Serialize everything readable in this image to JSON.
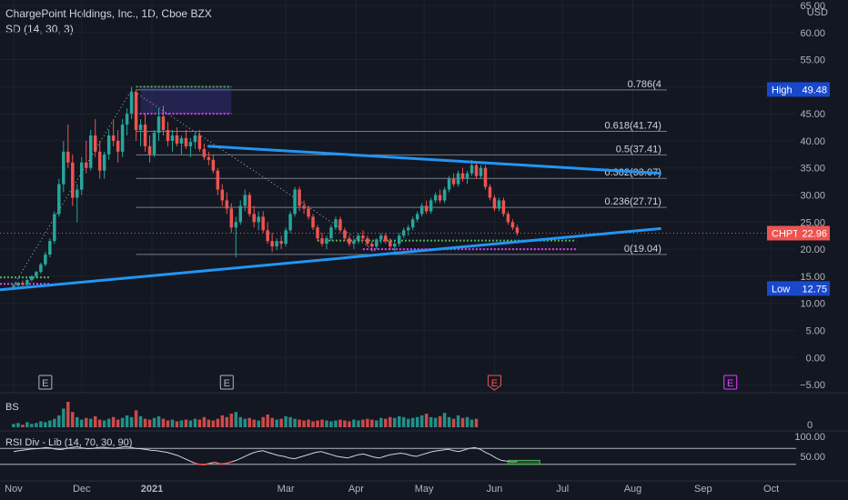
{
  "header": {
    "title": "ChargePoint Holdings, Inc., 1D, Cboe BZX",
    "indicator": "SD (14, 30, 3)"
  },
  "currency": "USD",
  "chart_data": {
    "type": "candlestick",
    "price_axis": {
      "ticks": [
        65,
        60,
        55,
        50,
        45,
        40,
        35,
        30,
        25,
        20,
        15,
        10,
        5,
        0,
        -5
      ],
      "tick_labels": [
        "65.00",
        "60.00",
        "55.00",
        "50.00",
        "45.00",
        "40.00",
        "35.00",
        "30.00",
        "25.00",
        "20.00",
        "15.00",
        "10.00",
        "5.00",
        "0.00",
        "−5.00"
      ],
      "range": [
        -6.5,
        66
      ]
    },
    "time_axis": {
      "labels": [
        "Nov",
        "Dec",
        "2021",
        "Mar",
        "Apr",
        "May",
        "Jun",
        "Jul",
        "Aug",
        "Sep",
        "Oct"
      ],
      "bold_label": "2021",
      "label_days": [
        0,
        30,
        61,
        120,
        151,
        181,
        212,
        242,
        273,
        304,
        334
      ],
      "range_days": [
        -6,
        345
      ]
    },
    "candles": [
      [
        0,
        13.0,
        13.6,
        12.6,
        13.3
      ],
      [
        2,
        13.3,
        14.0,
        13.0,
        13.8
      ],
      [
        4,
        13.8,
        14.2,
        13.2,
        13.4
      ],
      [
        6,
        13.4,
        14.5,
        13.1,
        14.3
      ],
      [
        8,
        14.3,
        15.2,
        14.0,
        15.0
      ],
      [
        10,
        15.0,
        16.0,
        14.6,
        15.8
      ],
      [
        12,
        15.8,
        17.5,
        15.5,
        17.2
      ],
      [
        14,
        17.2,
        19.5,
        16.8,
        19.0
      ],
      [
        16,
        19.0,
        22.0,
        18.5,
        21.5
      ],
      [
        18,
        21.5,
        27.0,
        21.0,
        26.5
      ],
      [
        20,
        26.5,
        33.0,
        26.0,
        32.0
      ],
      [
        22,
        32.0,
        40.0,
        30.5,
        38.0
      ],
      [
        24,
        38.0,
        43.0,
        35.0,
        36.0
      ],
      [
        26,
        36.0,
        37.5,
        28.0,
        29.5
      ],
      [
        28,
        29.5,
        32.0,
        25.0,
        31.0
      ],
      [
        30,
        31.0,
        37.0,
        30.0,
        36.0
      ],
      [
        32,
        36.0,
        40.0,
        34.0,
        35.0
      ],
      [
        34,
        35.0,
        42.0,
        34.5,
        41.0
      ],
      [
        36,
        41.0,
        44.0,
        37.0,
        38.0
      ],
      [
        38,
        38.0,
        40.0,
        33.0,
        34.5
      ],
      [
        40,
        34.5,
        38.0,
        33.0,
        37.5
      ],
      [
        42,
        37.5,
        42.0,
        36.5,
        41.0
      ],
      [
        44,
        41.0,
        44.0,
        39.0,
        40.0
      ],
      [
        46,
        40.0,
        42.0,
        36.0,
        38.0
      ],
      [
        48,
        38.0,
        44.0,
        37.0,
        43.0
      ],
      [
        50,
        43.0,
        46.0,
        41.0,
        45.0
      ],
      [
        52,
        45.0,
        50.0,
        44.0,
        49.0
      ],
      [
        54,
        49.0,
        49.5,
        40.0,
        42.0
      ],
      [
        56,
        42.0,
        44.0,
        39.0,
        43.0
      ],
      [
        58,
        43.0,
        45.0,
        38.0,
        39.0
      ],
      [
        60,
        39.0,
        41.0,
        36.0,
        37.5
      ],
      [
        62,
        37.5,
        42.0,
        37.0,
        41.5
      ],
      [
        64,
        41.5,
        46.0,
        40.0,
        44.5
      ],
      [
        66,
        44.5,
        46.5,
        41.0,
        42.0
      ],
      [
        68,
        42.0,
        43.5,
        39.0,
        40.0
      ],
      [
        70,
        40.0,
        42.0,
        38.0,
        41.0
      ],
      [
        72,
        41.0,
        42.5,
        39.0,
        39.5
      ],
      [
        74,
        39.5,
        41.0,
        37.5,
        40.5
      ],
      [
        76,
        40.5,
        42.0,
        38.5,
        39.0
      ],
      [
        78,
        39.0,
        40.5,
        37.0,
        39.8
      ],
      [
        80,
        39.8,
        41.5,
        38.5,
        41.0
      ],
      [
        82,
        41.0,
        42.0,
        38.0,
        38.5
      ],
      [
        84,
        38.5,
        39.5,
        36.5,
        37.0
      ],
      [
        86,
        37.0,
        38.0,
        35.5,
        36.5
      ],
      [
        88,
        36.5,
        37.5,
        34.0,
        34.5
      ],
      [
        90,
        34.5,
        35.0,
        30.0,
        31.0
      ],
      [
        92,
        31.0,
        32.0,
        28.0,
        29.0
      ],
      [
        94,
        29.0,
        30.5,
        26.5,
        27.5
      ],
      [
        96,
        27.5,
        28.5,
        23.0,
        24.0
      ],
      [
        98,
        24.0,
        26.0,
        18.5,
        25.0
      ],
      [
        100,
        25.0,
        29.0,
        24.5,
        28.0
      ],
      [
        102,
        28.0,
        31.0,
        27.0,
        30.0
      ],
      [
        104,
        30.0,
        30.5,
        26.0,
        26.5
      ],
      [
        106,
        26.5,
        28.0,
        24.0,
        25.0
      ],
      [
        108,
        25.0,
        27.0,
        23.5,
        26.0
      ],
      [
        110,
        26.0,
        27.0,
        23.0,
        23.5
      ],
      [
        112,
        23.5,
        25.0,
        21.0,
        21.5
      ],
      [
        114,
        21.5,
        23.0,
        19.5,
        20.5
      ],
      [
        116,
        20.5,
        22.0,
        19.8,
        21.5
      ],
      [
        118,
        21.5,
        22.5,
        20.0,
        21.0
      ],
      [
        120,
        21.0,
        24.0,
        20.5,
        23.5
      ],
      [
        122,
        23.5,
        27.0,
        23.0,
        26.5
      ],
      [
        124,
        26.5,
        31.5,
        26.0,
        31.0
      ],
      [
        126,
        31.0,
        31.5,
        27.0,
        28.0
      ],
      [
        128,
        28.0,
        29.0,
        26.5,
        27.5
      ],
      [
        130,
        27.5,
        28.0,
        25.5,
        26.0
      ],
      [
        132,
        26.0,
        26.5,
        23.5,
        24.0
      ],
      [
        134,
        24.0,
        24.5,
        21.5,
        22.0
      ],
      [
        136,
        22.0,
        23.0,
        20.5,
        21.0
      ],
      [
        138,
        21.0,
        22.5,
        20.0,
        22.0
      ],
      [
        140,
        22.0,
        24.5,
        21.5,
        24.0
      ],
      [
        142,
        24.0,
        26.0,
        23.5,
        25.5
      ],
      [
        144,
        25.5,
        26.0,
        23.0,
        23.5
      ],
      [
        146,
        23.5,
        24.0,
        21.5,
        22.0
      ],
      [
        148,
        22.0,
        22.5,
        20.5,
        21.0
      ],
      [
        150,
        21.0,
        22.0,
        20.0,
        21.5
      ],
      [
        152,
        21.5,
        23.0,
        21.0,
        22.5
      ],
      [
        154,
        22.5,
        23.5,
        21.5,
        22.0
      ],
      [
        156,
        22.0,
        22.5,
        20.5,
        21.0
      ],
      [
        158,
        21.0,
        21.5,
        19.5,
        20.5
      ],
      [
        160,
        20.5,
        22.0,
        20.0,
        21.8
      ],
      [
        162,
        21.8,
        23.0,
        21.0,
        22.5
      ],
      [
        164,
        22.5,
        23.0,
        21.0,
        21.5
      ],
      [
        166,
        21.5,
        22.0,
        19.8,
        20.5
      ],
      [
        168,
        20.5,
        21.5,
        19.5,
        21.0
      ],
      [
        170,
        21.0,
        23.0,
        20.5,
        22.5
      ],
      [
        172,
        22.5,
        24.0,
        22.0,
        23.5
      ],
      [
        174,
        23.5,
        24.5,
        22.5,
        24.0
      ],
      [
        176,
        24.0,
        26.0,
        23.5,
        25.5
      ],
      [
        178,
        25.5,
        27.0,
        25.0,
        26.5
      ],
      [
        180,
        26.5,
        28.5,
        26.0,
        28.0
      ],
      [
        182,
        28.0,
        29.0,
        26.5,
        27.0
      ],
      [
        184,
        27.0,
        29.5,
        26.5,
        29.0
      ],
      [
        186,
        29.0,
        30.5,
        28.5,
        30.0
      ],
      [
        188,
        30.0,
        31.0,
        28.5,
        29.0
      ],
      [
        190,
        29.0,
        31.5,
        28.5,
        31.0
      ],
      [
        192,
        31.0,
        33.5,
        30.5,
        33.0
      ],
      [
        194,
        33.0,
        34.0,
        31.5,
        32.0
      ],
      [
        196,
        32.0,
        34.5,
        31.5,
        34.0
      ],
      [
        198,
        34.0,
        35.0,
        32.5,
        33.0
      ],
      [
        200,
        33.0,
        34.5,
        32.0,
        34.0
      ],
      [
        202,
        34.0,
        36.5,
        33.5,
        35.5
      ],
      [
        204,
        35.5,
        36.0,
        33.0,
        33.5
      ],
      [
        206,
        33.5,
        35.5,
        33.0,
        35.0
      ],
      [
        208,
        35.0,
        35.5,
        31.0,
        31.5
      ],
      [
        210,
        31.5,
        32.0,
        29.0,
        29.5
      ],
      [
        212,
        29.5,
        30.0,
        27.0,
        27.5
      ],
      [
        214,
        27.5,
        29.5,
        27.0,
        29.0
      ],
      [
        216,
        29.0,
        29.5,
        26.0,
        26.5
      ],
      [
        218,
        26.5,
        27.0,
        24.5,
        25.0
      ],
      [
        220,
        25.0,
        25.5,
        23.5,
        24.0
      ],
      [
        222,
        24.0,
        24.5,
        22.5,
        22.96
      ]
    ],
    "fib_levels": [
      {
        "label": "0.786(4",
        "price": 49.4
      },
      {
        "label": "0.618(41.74)",
        "price": 41.74
      },
      {
        "label": "0.5(37.41)",
        "price": 37.41
      },
      {
        "label": "0.382(33.07)",
        "price": 33.07
      },
      {
        "label": "0.236(27.71)",
        "price": 27.71
      },
      {
        "label": "0(19.04)",
        "price": 19.04
      }
    ],
    "fib_day_range": [
      54,
      288
    ],
    "trendlines": [
      {
        "name": "upper",
        "from": [
          86,
          39.0
        ],
        "to": [
          285,
          34.0
        ]
      },
      {
        "name": "lower",
        "from": [
          -6,
          12.5
        ],
        "to": [
          285,
          23.8
        ]
      }
    ],
    "sd_levels": [
      {
        "color": "green",
        "day_from": 54,
        "day_to": 96,
        "price": 50.0
      },
      {
        "color": "magenta",
        "day_from": 54,
        "day_to": 96,
        "price": 45.0
      },
      {
        "color": "green",
        "day_from": -6,
        "day_to": 16,
        "price": 14.8
      },
      {
        "color": "magenta",
        "day_from": -6,
        "day_to": 16,
        "price": 13.6
      },
      {
        "color": "green",
        "day_from": 134,
        "day_to": 248,
        "price": 21.6
      },
      {
        "color": "magenta",
        "day_from": 154,
        "day_to": 248,
        "price": 20.0
      }
    ],
    "price_tags": {
      "high": {
        "label": "High",
        "value": "49.48",
        "price": 49.48
      },
      "current": {
        "label": "CHPT",
        "value": "22.96",
        "price": 22.96
      },
      "low": {
        "label": "Low",
        "value": "12.75",
        "price": 12.75
      }
    },
    "earnings_markers": [
      {
        "day": 14,
        "label": "E",
        "kind": "past"
      },
      {
        "day": 94,
        "label": "E",
        "kind": "past"
      },
      {
        "day": 212,
        "label": "E",
        "kind": "recent"
      },
      {
        "day": 316,
        "label": "E",
        "kind": "future"
      }
    ],
    "volume_pane": {
      "label": "BS",
      "axis_label": "0",
      "bars": [
        4,
        5,
        3,
        6,
        4,
        5,
        7,
        6,
        8,
        10,
        14,
        22,
        30,
        18,
        12,
        9,
        11,
        10,
        13,
        9,
        8,
        10,
        12,
        9,
        11,
        14,
        12,
        20,
        13,
        10,
        9,
        11,
        13,
        10,
        8,
        9,
        7,
        8,
        9,
        8,
        10,
        9,
        12,
        9,
        8,
        10,
        14,
        12,
        16,
        18,
        12,
        10,
        11,
        9,
        8,
        12,
        15,
        11,
        9,
        10,
        13,
        12,
        10,
        9,
        8,
        9,
        7,
        8,
        9,
        8,
        7,
        8,
        9,
        8,
        7,
        9,
        8,
        9,
        10,
        9,
        8,
        11,
        10,
        12,
        11,
        13,
        12,
        10,
        11,
        12,
        14,
        16,
        12,
        11,
        13,
        17,
        12,
        10,
        14,
        11,
        12,
        9,
        10
      ]
    },
    "rsi_pane": {
      "label": "RSI Div - Lib (14, 70, 30, 90)",
      "axis_labels": [
        "100.00",
        "50.00"
      ],
      "axis_values": [
        100,
        50
      ],
      "levels": [
        70,
        30
      ],
      "values": [
        62,
        64,
        66,
        68,
        69,
        70,
        72,
        71,
        68,
        67,
        70,
        72,
        74,
        71,
        69,
        70,
        72,
        73,
        71,
        70,
        72,
        74,
        73,
        70,
        69,
        67,
        65,
        64,
        62,
        60,
        56,
        52,
        46,
        40,
        34,
        30,
        29,
        33,
        35,
        31,
        32,
        36,
        40,
        46,
        52,
        58,
        62,
        64,
        60,
        56,
        52,
        50,
        46,
        44,
        48,
        52,
        56,
        60,
        62,
        58,
        54,
        50,
        48,
        46,
        50,
        54,
        56,
        52,
        48,
        46,
        50,
        54,
        56,
        58,
        56,
        52,
        50,
        54,
        58,
        62,
        64,
        66,
        68,
        64,
        62,
        66,
        70,
        72,
        68,
        60,
        54,
        46,
        40,
        38,
        36,
        37
      ]
    }
  }
}
